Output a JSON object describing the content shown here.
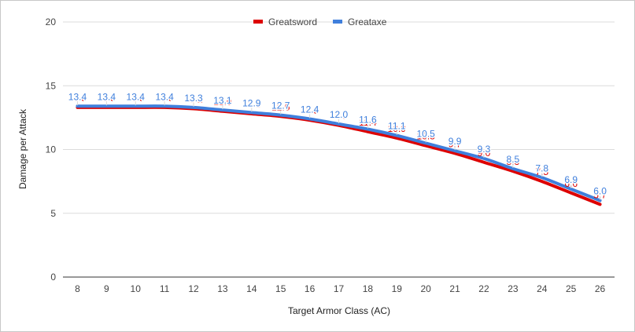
{
  "chart_data": {
    "type": "line",
    "title": "",
    "xlabel": "Target Armor Class (AC)",
    "ylabel": "Damage per Attack",
    "ylim": [
      0,
      20
    ],
    "yticks": [
      0,
      5,
      10,
      15,
      20
    ],
    "x": [
      8,
      9,
      10,
      11,
      12,
      13,
      14,
      15,
      16,
      17,
      18,
      19,
      20,
      21,
      22,
      23,
      24,
      25,
      26
    ],
    "series": [
      {
        "name": "Greatsword",
        "color": "#dd0000",
        "values": [
          13.3,
          13.3,
          13.3,
          13.3,
          13.2,
          13.0,
          12.8,
          12.6,
          12.3,
          11.9,
          11.4,
          10.9,
          10.3,
          9.7,
          9.0,
          8.3,
          7.5,
          6.6,
          5.7
        ],
        "labels": [
          "13.3",
          "13.3",
          "13.3",
          "13.3",
          "13.2",
          "13.0",
          "12.8",
          "12.6",
          "12.3",
          "11.9",
          "11.4",
          "10.9",
          "10.3",
          "9.7",
          "9.0",
          "8.3",
          "7.5",
          "6.6",
          "5.7"
        ]
      },
      {
        "name": "Greataxe",
        "color": "#3f7fdc",
        "values": [
          13.4,
          13.4,
          13.4,
          13.4,
          13.3,
          13.1,
          12.9,
          12.7,
          12.4,
          12.0,
          11.6,
          11.1,
          10.5,
          9.9,
          9.3,
          8.5,
          7.8,
          6.9,
          6.0
        ],
        "labels": [
          "13.4",
          "13.4",
          "13.4",
          "13.4",
          "13.3",
          "13.1",
          "12.9",
          "12.7",
          "12.4",
          "12.0",
          "11.6",
          "11.1",
          "10.5",
          "9.9",
          "9.3",
          "8.5",
          "7.8",
          "6.9",
          "6.0"
        ]
      }
    ],
    "legend": "top"
  }
}
